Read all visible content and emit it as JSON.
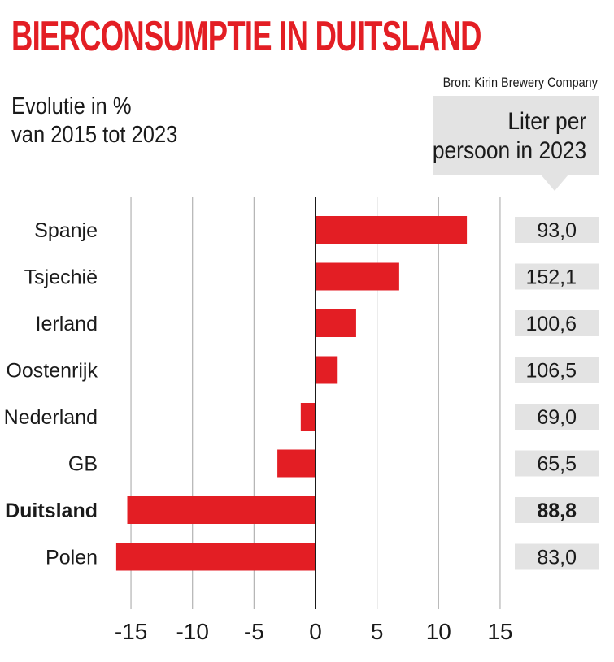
{
  "header": {
    "title": "BIERCONSUMPTIE IN DUITSLAND",
    "subtitle_line1": "Evolutie in %",
    "subtitle_line2": "van 2015 tot 2023",
    "source": "Bron: Kirin Brewery Company",
    "column_header_line1": "Liter per",
    "column_header_line2": "persoon in 2023"
  },
  "colors": {
    "title": "#e31e24",
    "bar": "#e31e24",
    "value_box": "#e3e3e3",
    "grid": "#b3b3b3",
    "axis": "#1a1a1a"
  },
  "chart_data": {
    "type": "bar",
    "orientation": "horizontal",
    "categories": [
      "Spanje",
      "Tsjechië",
      "Ierland",
      "Oostenrijk",
      "Nederland",
      "GB",
      "Duitsland",
      "Polen"
    ],
    "values": [
      12.3,
      6.8,
      3.3,
      1.8,
      -1.2,
      -3.1,
      -15.3,
      -16.2
    ],
    "liters_per_person": [
      "93,0",
      "152,1",
      "100,6",
      "106,5",
      "69,0",
      "65,5",
      "88,8",
      "83,0"
    ],
    "highlight": "Duitsland",
    "xlim": [
      -15,
      15
    ],
    "xticks": [
      -15,
      -10,
      -5,
      0,
      5,
      10,
      15
    ],
    "grid": true,
    "xlabel": "",
    "ylabel": ""
  }
}
